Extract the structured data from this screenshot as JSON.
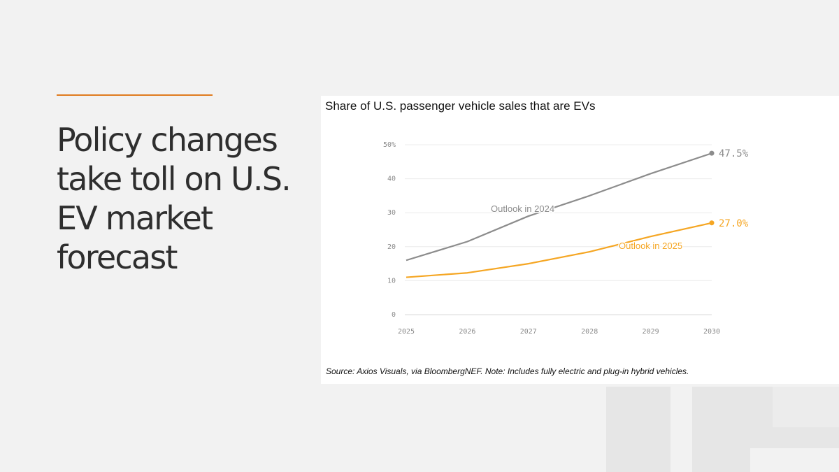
{
  "slide": {
    "title": "Policy changes take toll on U.S. EV market forecast",
    "accent_color": "#e07b1f"
  },
  "chart_title": "Share of U.S. passenger vehicle sales that are EVs",
  "source": "Source: Axios Visuals, via BloombergNEF. Note: Includes fully electric and plug-in hybrid vehicles.",
  "chart_data": {
    "type": "line",
    "title": "Share of U.S. passenger vehicle sales that are EVs",
    "xlabel": "",
    "ylabel": "",
    "x": [
      2025,
      2026,
      2027,
      2028,
      2029,
      2030
    ],
    "x_tick_labels": [
      "2025",
      "2026",
      "2027",
      "2028",
      "2029",
      "2030"
    ],
    "ylim": [
      0,
      50
    ],
    "y_ticks": [
      0,
      10,
      20,
      30,
      40,
      50
    ],
    "y_tick_labels": [
      "0",
      "10",
      "20",
      "30",
      "40",
      "50%"
    ],
    "grid": true,
    "series": [
      {
        "name": "Outlook in 2024",
        "values": [
          16,
          21.5,
          29,
          35,
          41.5,
          47.5
        ],
        "end_label": "47.5%",
        "color": "#8c8c8c"
      },
      {
        "name": "Outlook in 2025",
        "values": [
          11,
          12.3,
          15,
          18.5,
          23,
          27.0
        ],
        "end_label": "27.0%",
        "color": "#f5a623"
      }
    ]
  }
}
